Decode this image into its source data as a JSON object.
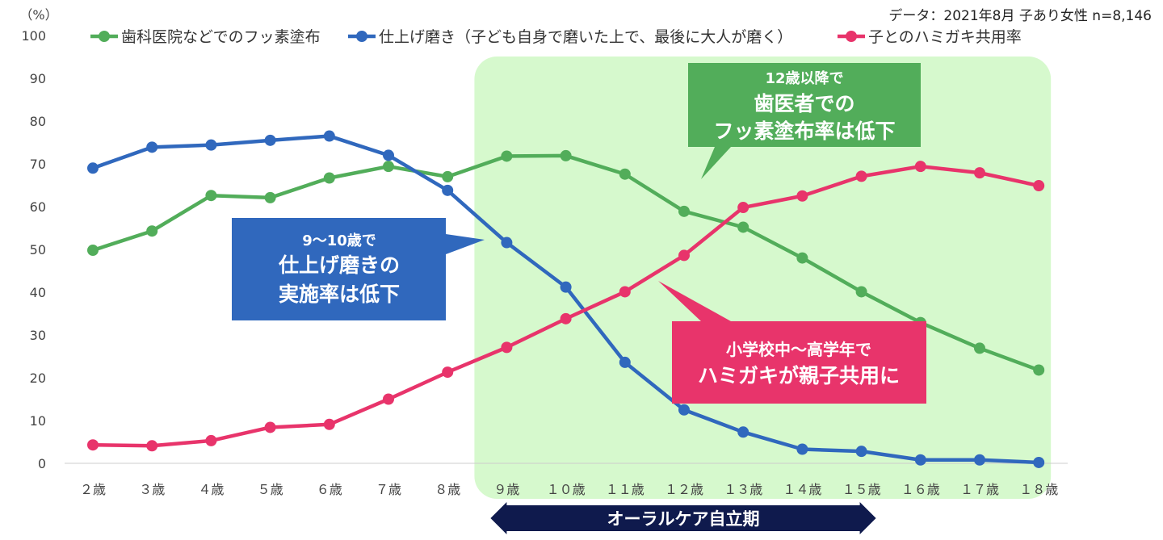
{
  "chart_data": {
    "type": "line",
    "source_note": "データ：2021年8月 子あり女性 n=8,146",
    "y_unit": "（%）",
    "ylim": [
      0,
      100
    ],
    "yticks": [
      0,
      10,
      20,
      30,
      40,
      50,
      60,
      70,
      80,
      90,
      100
    ],
    "grid": false,
    "legend_position": "top",
    "categories": [
      "２歳",
      "３歳",
      "４歳",
      "５歳",
      "６歳",
      "７歳",
      "８歳",
      "９歳",
      "１０歳",
      "１１歳",
      "１２歳",
      "１３歳",
      "１４歳",
      "１５歳",
      "１６歳",
      "１７歳",
      "１８歳"
    ],
    "series": [
      {
        "name": "歯科医院などでのフッ素塗布",
        "color": "#52ad5a",
        "values": [
          49.8,
          54.3,
          62.6,
          62.1,
          66.7,
          69.4,
          67.0,
          71.8,
          71.9,
          67.6,
          58.9,
          55.2,
          48.0,
          40.1,
          32.9,
          26.9,
          21.8
        ]
      },
      {
        "name": "仕上げ磨き（子ども自身で磨いた上で、最後に大人が磨く）",
        "color": "#3068bd",
        "values": [
          69.0,
          73.9,
          74.4,
          75.5,
          76.5,
          72.0,
          63.8,
          51.6,
          41.2,
          23.6,
          12.5,
          7.3,
          3.3,
          2.8,
          0.8,
          0.8,
          0.2
        ]
      },
      {
        "name": "子とのハミガキ共用率",
        "color": "#e8346b",
        "values": [
          4.3,
          4.1,
          5.3,
          8.4,
          9.1,
          15.0,
          21.3,
          27.1,
          33.8,
          40.1,
          48.6,
          59.8,
          62.5,
          67.1,
          69.4,
          67.9,
          64.9
        ]
      }
    ],
    "highlight_region": {
      "from_category": "９歳",
      "to_category": "１８歳",
      "color": "#d6f9cd"
    },
    "period_arrow": {
      "label": "オーラルケア自立期",
      "from_category": "９歳",
      "to_category": "１５歳",
      "color": "#0f1a4d"
    },
    "annotations": [
      {
        "id": "green",
        "color": "#52ad5a",
        "lines": [
          "12歳以降で",
          "歯医者での",
          "フッ素塗布率は低下"
        ]
      },
      {
        "id": "blue",
        "color": "#3068bd",
        "lines": [
          "9～10歳で",
          "仕上げ磨きの",
          "実施率は低下"
        ]
      },
      {
        "id": "pink",
        "color": "#e8346b",
        "lines": [
          "小学校中～高学年で",
          "ハミガキが親子共用に"
        ]
      }
    ]
  }
}
